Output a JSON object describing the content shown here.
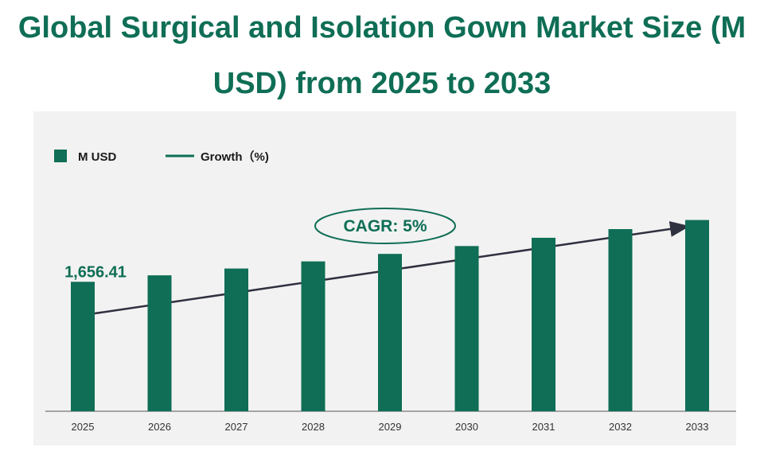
{
  "title_line1": "Global Surgical and Isolation Gown Market Size (M",
  "title_line2": "USD) from 2025 to 2033",
  "legend": {
    "bar_label": "M USD",
    "line_label": "Growth（%)"
  },
  "cagr_label": "CAGR: 5%",
  "colors": {
    "bar": "#0f6e55",
    "title": "#0f6e55",
    "panel": "#f2f2f2",
    "arrow": "#2f3040"
  },
  "chart_data": {
    "type": "bar",
    "title": "Global Surgical and Isolation Gown Market Size (M USD) from 2025 to 2033",
    "categories": [
      "2025",
      "2026",
      "2027",
      "2028",
      "2029",
      "2030",
      "2031",
      "2032",
      "2033"
    ],
    "series": [
      {
        "name": "M USD",
        "values": [
          1656.41,
          1739.23,
          1826.19,
          1917.5,
          2013.38,
          2114.05,
          2219.75,
          2330.74,
          2447.27
        ]
      }
    ],
    "data_labels": {
      "2025": "1,656.41"
    },
    "annotation": "CAGR: 5%",
    "ylim": [
      0,
      2850
    ],
    "grid": false,
    "legend_position": "top-left"
  }
}
